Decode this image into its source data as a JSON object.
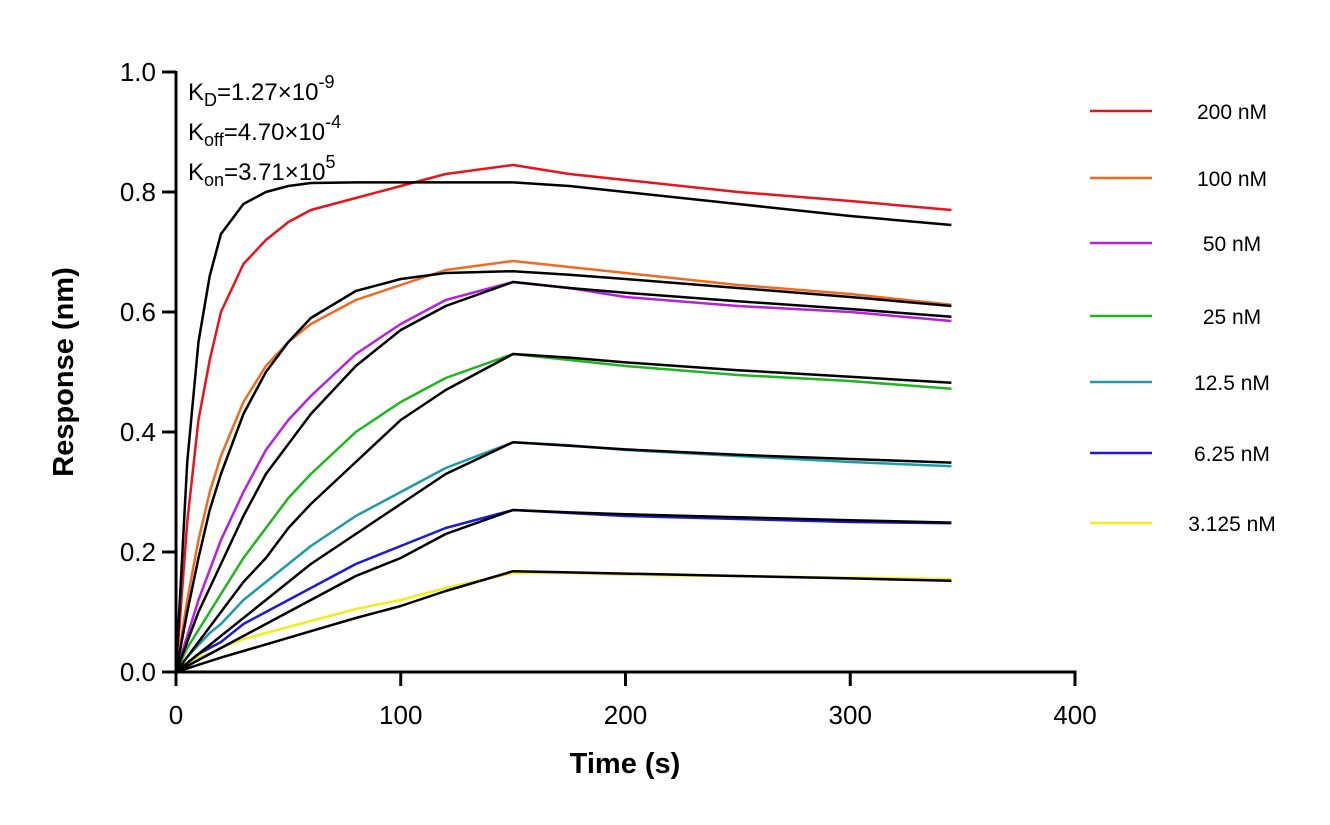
{
  "chart_data": {
    "type": "line",
    "x_label": "Time (s)",
    "y_label": "Response (nm)",
    "xlim": [
      0,
      400
    ],
    "ylim": [
      0,
      1.0
    ],
    "xticks": [
      0,
      100,
      200,
      300,
      400
    ],
    "yticks": [
      {
        "value": 0,
        "label": "0.0"
      },
      0.2,
      0.4,
      0.6,
      0.8,
      {
        "value": 1,
        "label": "1.0"
      }
    ],
    "annotations": [
      {
        "base": "K",
        "subscript": "D",
        "text": "=1.27×10",
        "superscript": "-9"
      },
      {
        "base": "K",
        "subscript": "off",
        "text": "=4.70×10",
        "superscript": "-4"
      },
      {
        "base": "K",
        "subscript": "on",
        "text": "=3.71×10",
        "superscript": "5"
      }
    ],
    "x": [
      0,
      5,
      10,
      15,
      20,
      30,
      40,
      50,
      60,
      80,
      100,
      120,
      150,
      175,
      200,
      250,
      300,
      345
    ],
    "series": [
      {
        "name": "200 nM",
        "color": "#e8141b",
        "values": [
          0,
          0.25,
          0.42,
          0.52,
          0.6,
          0.68,
          0.72,
          0.75,
          0.77,
          0.79,
          0.81,
          0.83,
          0.845,
          0.83,
          0.82,
          0.8,
          0.785,
          0.77
        ]
      },
      {
        "name": "100 nM",
        "color": "#f26a21",
        "values": [
          0,
          0.12,
          0.22,
          0.3,
          0.36,
          0.45,
          0.51,
          0.55,
          0.58,
          0.62,
          0.645,
          0.67,
          0.685,
          0.675,
          0.665,
          0.645,
          0.63,
          0.612
        ]
      },
      {
        "name": "50 nM",
        "color": "#b620e0",
        "values": [
          0,
          0.06,
          0.12,
          0.17,
          0.22,
          0.3,
          0.37,
          0.42,
          0.46,
          0.53,
          0.58,
          0.62,
          0.65,
          0.64,
          0.625,
          0.61,
          0.6,
          0.585
        ]
      },
      {
        "name": "25 nM",
        "color": "#1fb51f",
        "values": [
          0,
          0.04,
          0.07,
          0.1,
          0.13,
          0.19,
          0.24,
          0.29,
          0.33,
          0.4,
          0.45,
          0.49,
          0.53,
          0.52,
          0.51,
          0.495,
          0.485,
          0.472
        ]
      },
      {
        "name": "12.5 nM",
        "color": "#1e9aa8",
        "values": [
          0,
          0.025,
          0.045,
          0.065,
          0.08,
          0.12,
          0.15,
          0.18,
          0.21,
          0.26,
          0.3,
          0.34,
          0.383,
          0.378,
          0.37,
          0.36,
          0.35,
          0.343
        ]
      },
      {
        "name": "6.25 nM",
        "color": "#1a1adc",
        "values": [
          0,
          0.015,
          0.03,
          0.04,
          0.05,
          0.08,
          0.1,
          0.12,
          0.14,
          0.18,
          0.21,
          0.24,
          0.27,
          0.265,
          0.26,
          0.255,
          0.25,
          0.248
        ]
      },
      {
        "name": "3.125 nM",
        "color": "#f2ee16",
        "values": [
          0,
          0.015,
          0.025,
          0.03,
          0.04,
          0.055,
          0.065,
          0.075,
          0.085,
          0.105,
          0.12,
          0.14,
          0.165,
          0.165,
          0.162,
          0.16,
          0.157,
          0.155
        ]
      }
    ],
    "fit_color": "#000000",
    "fits": [
      [
        0,
        0.35,
        0.55,
        0.66,
        0.73,
        0.78,
        0.8,
        0.81,
        0.815,
        0.816,
        0.816,
        0.816,
        0.816,
        0.81,
        0.8,
        0.78,
        0.76,
        0.745
      ],
      [
        0,
        0.1,
        0.19,
        0.27,
        0.33,
        0.43,
        0.5,
        0.55,
        0.59,
        0.635,
        0.655,
        0.665,
        0.668,
        0.662,
        0.655,
        0.64,
        0.625,
        0.61
      ],
      [
        0,
        0.05,
        0.1,
        0.14,
        0.18,
        0.26,
        0.33,
        0.38,
        0.43,
        0.51,
        0.57,
        0.61,
        0.65,
        0.64,
        0.632,
        0.618,
        0.605,
        0.592
      ],
      [
        0,
        0.025,
        0.05,
        0.075,
        0.1,
        0.15,
        0.19,
        0.24,
        0.28,
        0.35,
        0.42,
        0.47,
        0.53,
        0.524,
        0.516,
        0.503,
        0.492,
        0.482
      ],
      [
        0,
        0.015,
        0.03,
        0.045,
        0.06,
        0.09,
        0.12,
        0.15,
        0.18,
        0.23,
        0.28,
        0.33,
        0.383,
        0.377,
        0.371,
        0.362,
        0.355,
        0.349
      ],
      [
        0,
        0.01,
        0.02,
        0.03,
        0.04,
        0.06,
        0.08,
        0.1,
        0.12,
        0.16,
        0.19,
        0.23,
        0.27,
        0.266,
        0.263,
        0.258,
        0.253,
        0.249
      ],
      [
        0,
        0.006,
        0.012,
        0.018,
        0.024,
        0.035,
        0.046,
        0.057,
        0.068,
        0.09,
        0.11,
        0.135,
        0.168,
        0.166,
        0.164,
        0.16,
        0.156,
        0.152
      ]
    ]
  }
}
